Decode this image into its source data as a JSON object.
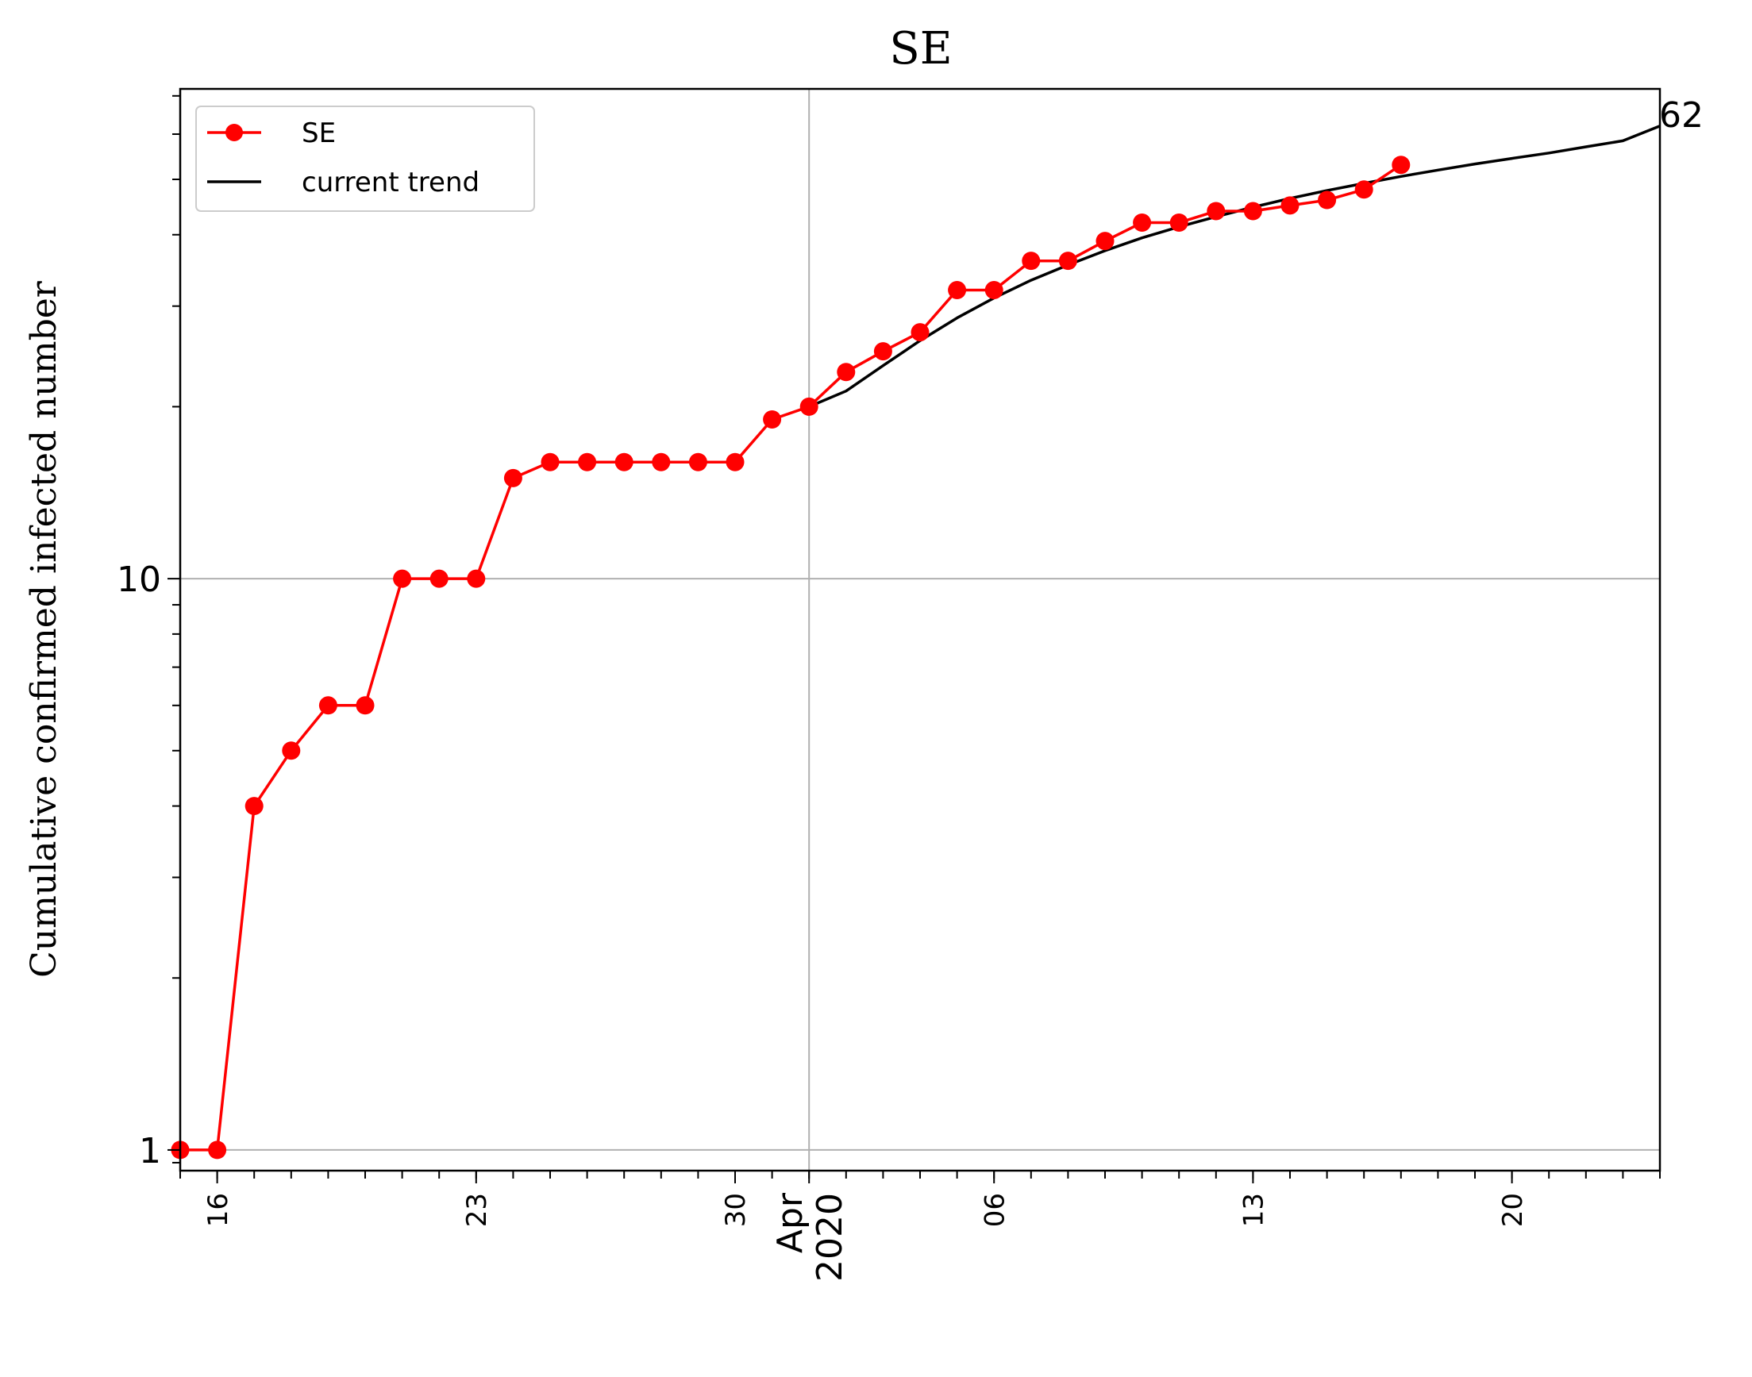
{
  "chart_data": {
    "type": "line",
    "title": "SE",
    "xlabel": "",
    "ylabel": "Cumulative confirmed infected number",
    "yscale": "log",
    "ylim": [
      0.92,
      72
    ],
    "xlim": [
      "2020-03-15",
      "2020-04-24"
    ],
    "grid": true,
    "legend_position": "top-left",
    "end_annotation": "62",
    "colors": {
      "series": "#ff0000",
      "trend": "#000000",
      "grid": "#b0b0b0"
    },
    "x_ticks": [
      {
        "date": "2020-03-16",
        "label": "16"
      },
      {
        "date": "2020-03-23",
        "label": "23"
      },
      {
        "date": "2020-03-30",
        "label": "30"
      },
      {
        "date": "2020-04-01",
        "label": "Apr\n2020"
      },
      {
        "date": "2020-04-06",
        "label": "06"
      },
      {
        "date": "2020-04-13",
        "label": "13"
      },
      {
        "date": "2020-04-20",
        "label": "20"
      }
    ],
    "y_ticks": [
      {
        "value": 1,
        "label": "1"
      },
      {
        "value": 10,
        "label": "10"
      }
    ],
    "series": [
      {
        "name": "SE",
        "x": [
          "2020-03-15",
          "2020-03-16",
          "2020-03-17",
          "2020-03-18",
          "2020-03-19",
          "2020-03-20",
          "2020-03-21",
          "2020-03-22",
          "2020-03-23",
          "2020-03-24",
          "2020-03-25",
          "2020-03-26",
          "2020-03-27",
          "2020-03-28",
          "2020-03-29",
          "2020-03-30",
          "2020-03-31",
          "2020-04-01",
          "2020-04-02",
          "2020-04-03",
          "2020-04-04",
          "2020-04-05",
          "2020-04-06",
          "2020-04-07",
          "2020-04-08",
          "2020-04-09",
          "2020-04-10",
          "2020-04-11",
          "2020-04-12",
          "2020-04-13",
          "2020-04-14",
          "2020-04-15",
          "2020-04-16",
          "2020-04-17"
        ],
        "y": [
          1,
          1,
          4,
          5,
          6,
          6,
          10,
          10,
          10,
          15,
          16,
          16,
          16,
          16,
          16,
          16,
          19,
          20,
          23,
          25,
          27,
          32,
          32,
          36,
          36,
          39,
          42,
          42,
          44,
          44,
          45,
          46,
          48,
          53
        ]
      },
      {
        "name": "current trend",
        "x": [
          "2020-04-01",
          "2020-04-02",
          "2020-04-03",
          "2020-04-04",
          "2020-04-05",
          "2020-04-06",
          "2020-04-07",
          "2020-04-08",
          "2020-04-09",
          "2020-04-10",
          "2020-04-11",
          "2020-04-12",
          "2020-04-13",
          "2020-04-14",
          "2020-04-15",
          "2020-04-16",
          "2020-04-17",
          "2020-04-18",
          "2020-04-19",
          "2020-04-20",
          "2020-04-21",
          "2020-04-22",
          "2020-04-23",
          "2020-04-24"
        ],
        "y": [
          20,
          21.3,
          23.6,
          26.1,
          28.6,
          31,
          33.3,
          35.4,
          37.5,
          39.5,
          41.3,
          43,
          44.7,
          46.3,
          47.8,
          49.2,
          50.6,
          51.9,
          53.2,
          54.4,
          55.6,
          57,
          58.4,
          62
        ]
      }
    ]
  }
}
